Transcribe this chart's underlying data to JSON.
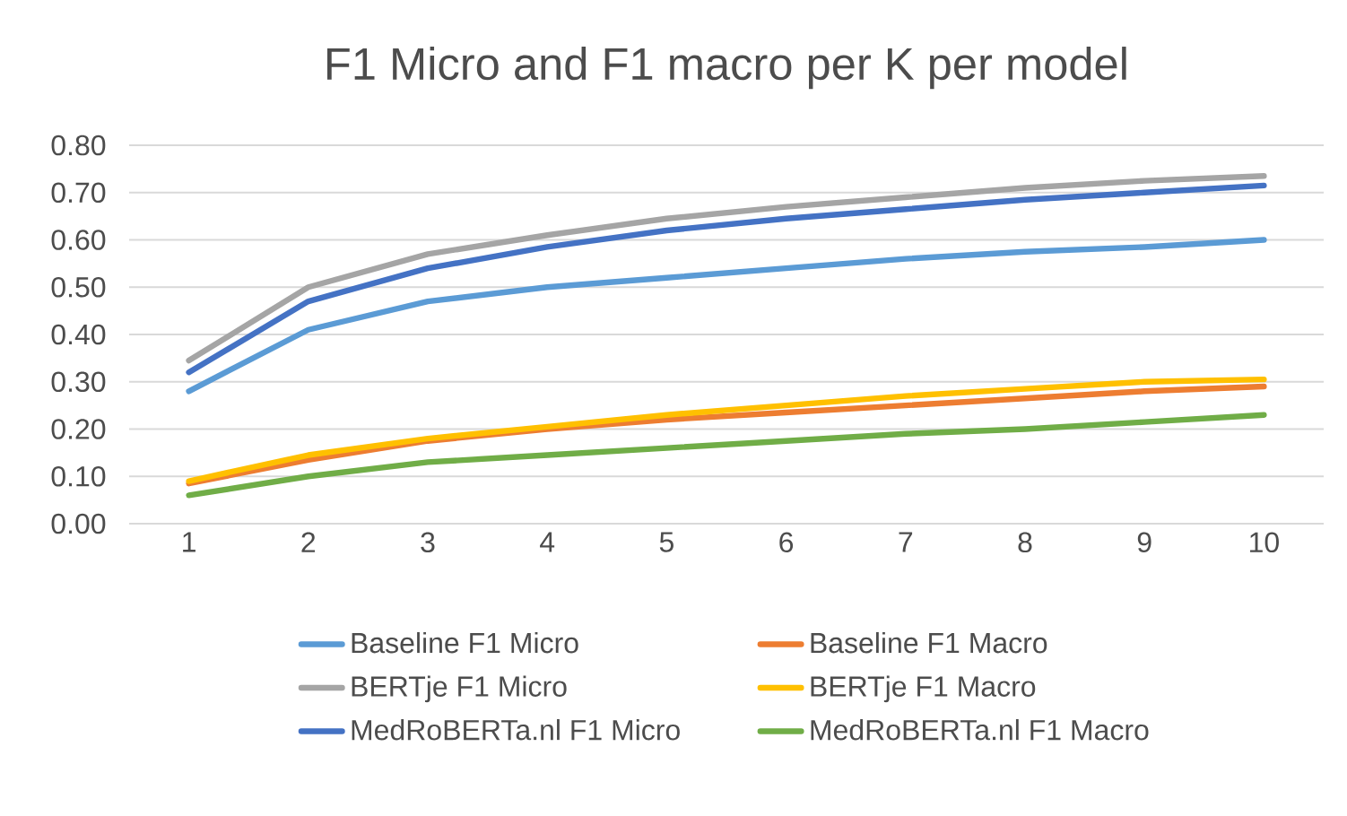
{
  "chart_data": {
    "type": "line",
    "title": "F1 Micro and F1 macro per K per model",
    "categories": [
      "1",
      "2",
      "3",
      "4",
      "5",
      "6",
      "7",
      "8",
      "9",
      "10"
    ],
    "series": [
      {
        "name": "Baseline F1 Micro",
        "color": "#5b9bd5",
        "values": [
          0.28,
          0.41,
          0.47,
          0.5,
          0.52,
          0.54,
          0.56,
          0.575,
          0.585,
          0.6
        ]
      },
      {
        "name": "Baseline F1 Macro",
        "color": "#ed7d31",
        "values": [
          0.085,
          0.135,
          0.175,
          0.2,
          0.22,
          0.235,
          0.25,
          0.265,
          0.28,
          0.29
        ]
      },
      {
        "name": "BERTje F1 Micro",
        "color": "#a5a5a5",
        "values": [
          0.345,
          0.5,
          0.57,
          0.61,
          0.645,
          0.67,
          0.69,
          0.71,
          0.725,
          0.735
        ]
      },
      {
        "name": "BERTje F1 Macro",
        "color": "#ffc000",
        "values": [
          0.09,
          0.145,
          0.18,
          0.205,
          0.23,
          0.25,
          0.27,
          0.285,
          0.3,
          0.305
        ]
      },
      {
        "name": "MedRoBERTa.nl F1 Micro",
        "color": "#4472c4",
        "values": [
          0.32,
          0.47,
          0.54,
          0.585,
          0.62,
          0.645,
          0.665,
          0.685,
          0.7,
          0.715
        ]
      },
      {
        "name": "MedRoBERTa.nl F1 Macro",
        "color": "#70ad47",
        "values": [
          0.06,
          0.1,
          0.13,
          0.145,
          0.16,
          0.175,
          0.19,
          0.2,
          0.215,
          0.23
        ]
      }
    ],
    "ylim": [
      0,
      0.8
    ],
    "yticks": [
      {
        "value": 0,
        "label": "0.00"
      },
      {
        "value": 0.1,
        "label": "0.10"
      },
      {
        "value": 0.2,
        "label": "0.20"
      },
      {
        "value": 0.3,
        "label": "0.30"
      },
      {
        "value": 0.4,
        "label": "0.40"
      },
      {
        "value": 0.5,
        "label": "0.50"
      },
      {
        "value": 0.6,
        "label": "0.60"
      },
      {
        "value": 0.7,
        "label": "0.70"
      },
      {
        "value": 0.8,
        "label": "0.80"
      }
    ],
    "grid": "y",
    "legend": "bottom",
    "marker": "none",
    "line_style": "solid"
  }
}
